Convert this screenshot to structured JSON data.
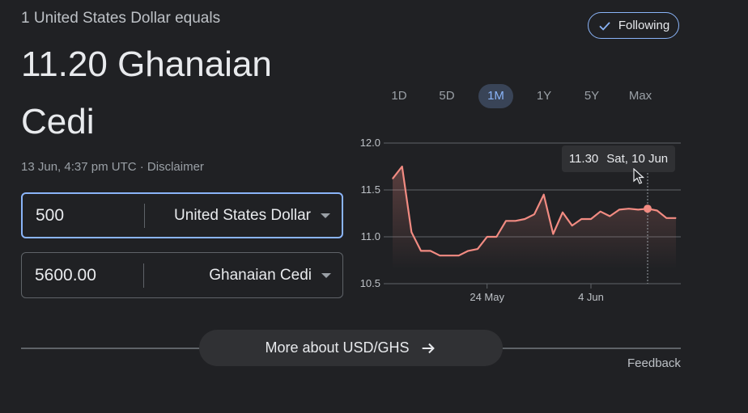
{
  "header": {
    "subtitle": "1 United States Dollar equals",
    "value_line1": "11.20 Ghanaian",
    "value_line2": "Cedi",
    "timestamp": "13 Jun, 4:37 pm UTC",
    "separator": " · ",
    "disclaimer": "Disclaimer"
  },
  "follow": {
    "label": "Following",
    "icon": "check-icon"
  },
  "converter": {
    "from": {
      "amount": "500",
      "currency": "United States Dollar"
    },
    "to": {
      "amount": "5600.00",
      "currency": "Ghanaian Cedi"
    }
  },
  "ranges": [
    "1D",
    "5D",
    "1M",
    "1Y",
    "5Y",
    "Max"
  ],
  "selected_range": "1M",
  "tooltip": {
    "value": "11.30",
    "date": "Sat, 10 Jun"
  },
  "chart_data": {
    "type": "area",
    "title": "",
    "xlabel": "",
    "ylabel": "",
    "ylim": [
      10.5,
      12.0
    ],
    "yticks": [
      "12.0",
      "11.5",
      "11.0",
      "10.5"
    ],
    "xticks": [
      {
        "label": "24 May",
        "date": "2023-05-24"
      },
      {
        "label": "4 Jun",
        "date": "2023-06-04"
      }
    ],
    "grid": true,
    "line_color": "#f28b82",
    "series": [
      {
        "values": [
          [
            "2023-05-14",
            11.62
          ],
          [
            "2023-05-15",
            11.75
          ],
          [
            "2023-05-16",
            11.05
          ],
          [
            "2023-05-17",
            10.85
          ],
          [
            "2023-05-18",
            10.85
          ],
          [
            "2023-05-19",
            10.8
          ],
          [
            "2023-05-20",
            10.8
          ],
          [
            "2023-05-21",
            10.8
          ],
          [
            "2023-05-22",
            10.85
          ],
          [
            "2023-05-23",
            10.87
          ],
          [
            "2023-05-24",
            11.0
          ],
          [
            "2023-05-25",
            11.0
          ],
          [
            "2023-05-26",
            11.17
          ],
          [
            "2023-05-27",
            11.17
          ],
          [
            "2023-05-28",
            11.19
          ],
          [
            "2023-05-29",
            11.24
          ],
          [
            "2023-05-30",
            11.45
          ],
          [
            "2023-05-31",
            11.03
          ],
          [
            "2023-06-01",
            11.26
          ],
          [
            "2023-06-02",
            11.12
          ],
          [
            "2023-06-03",
            11.19
          ],
          [
            "2023-06-04",
            11.19
          ],
          [
            "2023-06-05",
            11.27
          ],
          [
            "2023-06-06",
            11.22
          ],
          [
            "2023-06-07",
            11.29
          ],
          [
            "2023-06-08",
            11.3
          ],
          [
            "2023-06-09",
            11.29
          ],
          [
            "2023-06-10",
            11.3
          ],
          [
            "2023-06-11",
            11.28
          ],
          [
            "2023-06-12",
            11.2
          ],
          [
            "2023-06-13",
            11.2
          ]
        ]
      }
    ],
    "highlight": {
      "date": "2023-06-10",
      "value": 11.3
    }
  },
  "more_button": {
    "label": "More about USD/GHS",
    "icon": "arrow-right-icon"
  },
  "feedback": "Feedback"
}
